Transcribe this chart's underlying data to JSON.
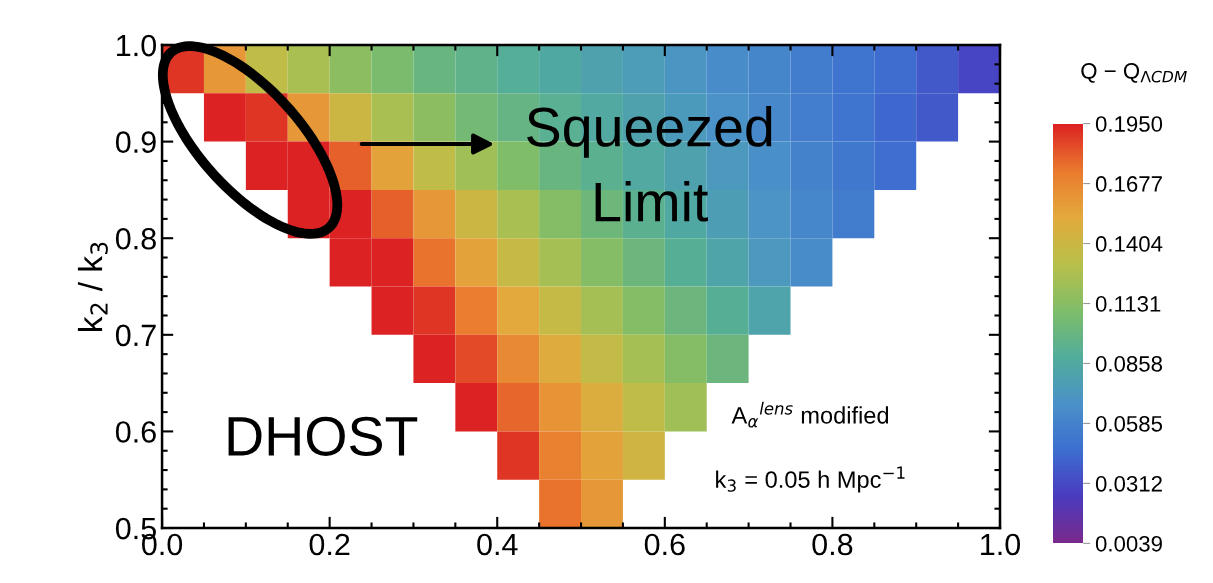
{
  "chart_data": {
    "type": "heatmap",
    "ylabel": "k$_{2}$ / k$_{3}$",
    "clabel": "Q − Q$_{ΛCDM}$",
    "xlim": [
      0,
      1
    ],
    "ylim": [
      0.5,
      1
    ],
    "xticks": [
      {
        "value": 0,
        "label": "0.0"
      },
      {
        "value": 0.2,
        "label": "0.2"
      },
      {
        "value": 0.4,
        "label": "0.4"
      },
      {
        "value": 0.6,
        "label": "0.6"
      },
      {
        "value": 0.8,
        "label": "0.8"
      },
      {
        "value": 1,
        "label": "1.0"
      }
    ],
    "yticks": [
      {
        "value": 0.5,
        "label": "0.5"
      },
      {
        "value": 0.6,
        "label": "0.6"
      },
      {
        "value": 0.7,
        "label": "0.7"
      },
      {
        "value": 0.8,
        "label": "0.8"
      },
      {
        "value": 0.9,
        "label": "0.9"
      },
      {
        "value": 1,
        "label": "1.0"
      }
    ],
    "clim": [
      0.0039,
      0.195
    ],
    "cticks": [
      {
        "value": 0.0039,
        "label": "0.0039"
      },
      {
        "value": 0.0312,
        "label": "0.0312"
      },
      {
        "value": 0.0585,
        "label": "0.0585"
      },
      {
        "value": 0.0858,
        "label": "0.0858"
      },
      {
        "value": 0.1131,
        "label": "0.1131"
      },
      {
        "value": 0.1404,
        "label": "0.1404"
      },
      {
        "value": 0.1677,
        "label": "0.1677"
      },
      {
        "value": 0.195,
        "label": "0.1950"
      }
    ],
    "cells": [
      [
        0.19,
        0.16,
        0.135,
        0.125,
        0.115,
        0.108,
        0.1,
        0.095,
        0.09,
        0.085,
        0.08,
        0.075,
        0.07,
        0.065,
        0.06,
        0.055,
        0.05,
        0.045,
        0.038,
        0.03
      ],
      [
        null,
        0.195,
        0.19,
        0.16,
        0.14,
        0.125,
        0.115,
        0.105,
        0.098,
        0.092,
        0.086,
        0.08,
        0.074,
        0.068,
        0.062,
        0.056,
        0.05,
        0.044,
        0.038,
        null
      ],
      [
        null,
        null,
        0.195,
        0.195,
        0.18,
        0.155,
        0.135,
        0.122,
        0.11,
        0.1,
        0.093,
        0.086,
        0.08,
        0.073,
        0.066,
        0.059,
        0.052,
        0.046,
        null,
        null
      ],
      [
        null,
        null,
        null,
        0.195,
        0.195,
        0.18,
        0.16,
        0.14,
        0.125,
        0.112,
        0.102,
        0.093,
        0.085,
        0.077,
        0.069,
        0.061,
        0.054,
        null,
        null,
        null
      ],
      [
        null,
        null,
        null,
        null,
        0.195,
        0.195,
        0.175,
        0.155,
        0.138,
        0.124,
        0.112,
        0.101,
        0.091,
        0.082,
        0.073,
        0.064,
        null,
        null,
        null,
        null
      ],
      [
        null,
        null,
        null,
        null,
        null,
        0.195,
        0.19,
        0.172,
        0.152,
        0.137,
        0.124,
        0.112,
        0.101,
        0.091,
        0.081,
        null,
        null,
        null,
        null,
        null
      ],
      [
        null,
        null,
        null,
        null,
        null,
        null,
        0.195,
        0.185,
        0.166,
        0.15,
        0.136,
        0.124,
        0.112,
        0.101,
        null,
        null,
        null,
        null,
        null,
        null
      ],
      [
        null,
        null,
        null,
        null,
        null,
        null,
        null,
        0.195,
        0.178,
        0.162,
        0.148,
        0.135,
        0.122,
        null,
        null,
        null,
        null,
        null,
        null,
        null
      ],
      [
        null,
        null,
        null,
        null,
        null,
        null,
        null,
        null,
        0.19,
        0.17,
        0.155,
        0.142,
        null,
        null,
        null,
        null,
        null,
        null,
        null,
        null
      ],
      [
        null,
        null,
        null,
        null,
        null,
        null,
        null,
        null,
        null,
        0.175,
        0.16,
        null,
        null,
        null,
        null,
        null,
        null,
        null,
        null,
        null
      ]
    ],
    "annotations": [
      "Squeezed",
      "Limit",
      "DHOST",
      "A$_{α}$$^{lens}$ modified",
      "k$_{3}$ = 0.05 h Mpc$^{−1}$"
    ]
  }
}
